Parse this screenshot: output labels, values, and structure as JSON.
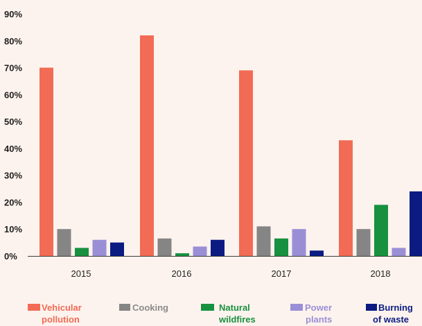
{
  "chart_data": {
    "type": "bar",
    "categories": [
      "2015",
      "2016",
      "2017",
      "2018"
    ],
    "ylim": [
      0,
      90
    ],
    "yticks": [
      "0%",
      "10%",
      "20%",
      "30%",
      "40%",
      "50%",
      "60%",
      "70%",
      "80%",
      "90%"
    ],
    "grid": false,
    "legend_position": "bottom",
    "series": [
      {
        "name": "Vehicular pollution",
        "color": "#f26b55",
        "values": [
          70,
          82,
          69,
          43
        ]
      },
      {
        "name": "Cooking",
        "color": "#858585",
        "values": [
          10,
          6.5,
          11,
          10
        ]
      },
      {
        "name": "Natural wildfires",
        "color": "#17913f",
        "values": [
          3,
          1,
          6.5,
          19
        ]
      },
      {
        "name": "Power plants",
        "color": "#9a8fd6",
        "values": [
          6,
          3.5,
          10,
          3
        ]
      },
      {
        "name": "Burning of waste",
        "color": "#0b1b82",
        "values": [
          5,
          6,
          2,
          24
        ]
      }
    ]
  },
  "legend": {
    "items": [
      {
        "line1": "Vehicular",
        "line2": "pollution"
      },
      {
        "line1": "Cooking",
        "line2": ""
      },
      {
        "line1": "Natural",
        "line2": "wildfires"
      },
      {
        "line1": "Power",
        "line2": "plants"
      },
      {
        "line1": "Burning",
        "line2": "of waste"
      }
    ]
  }
}
